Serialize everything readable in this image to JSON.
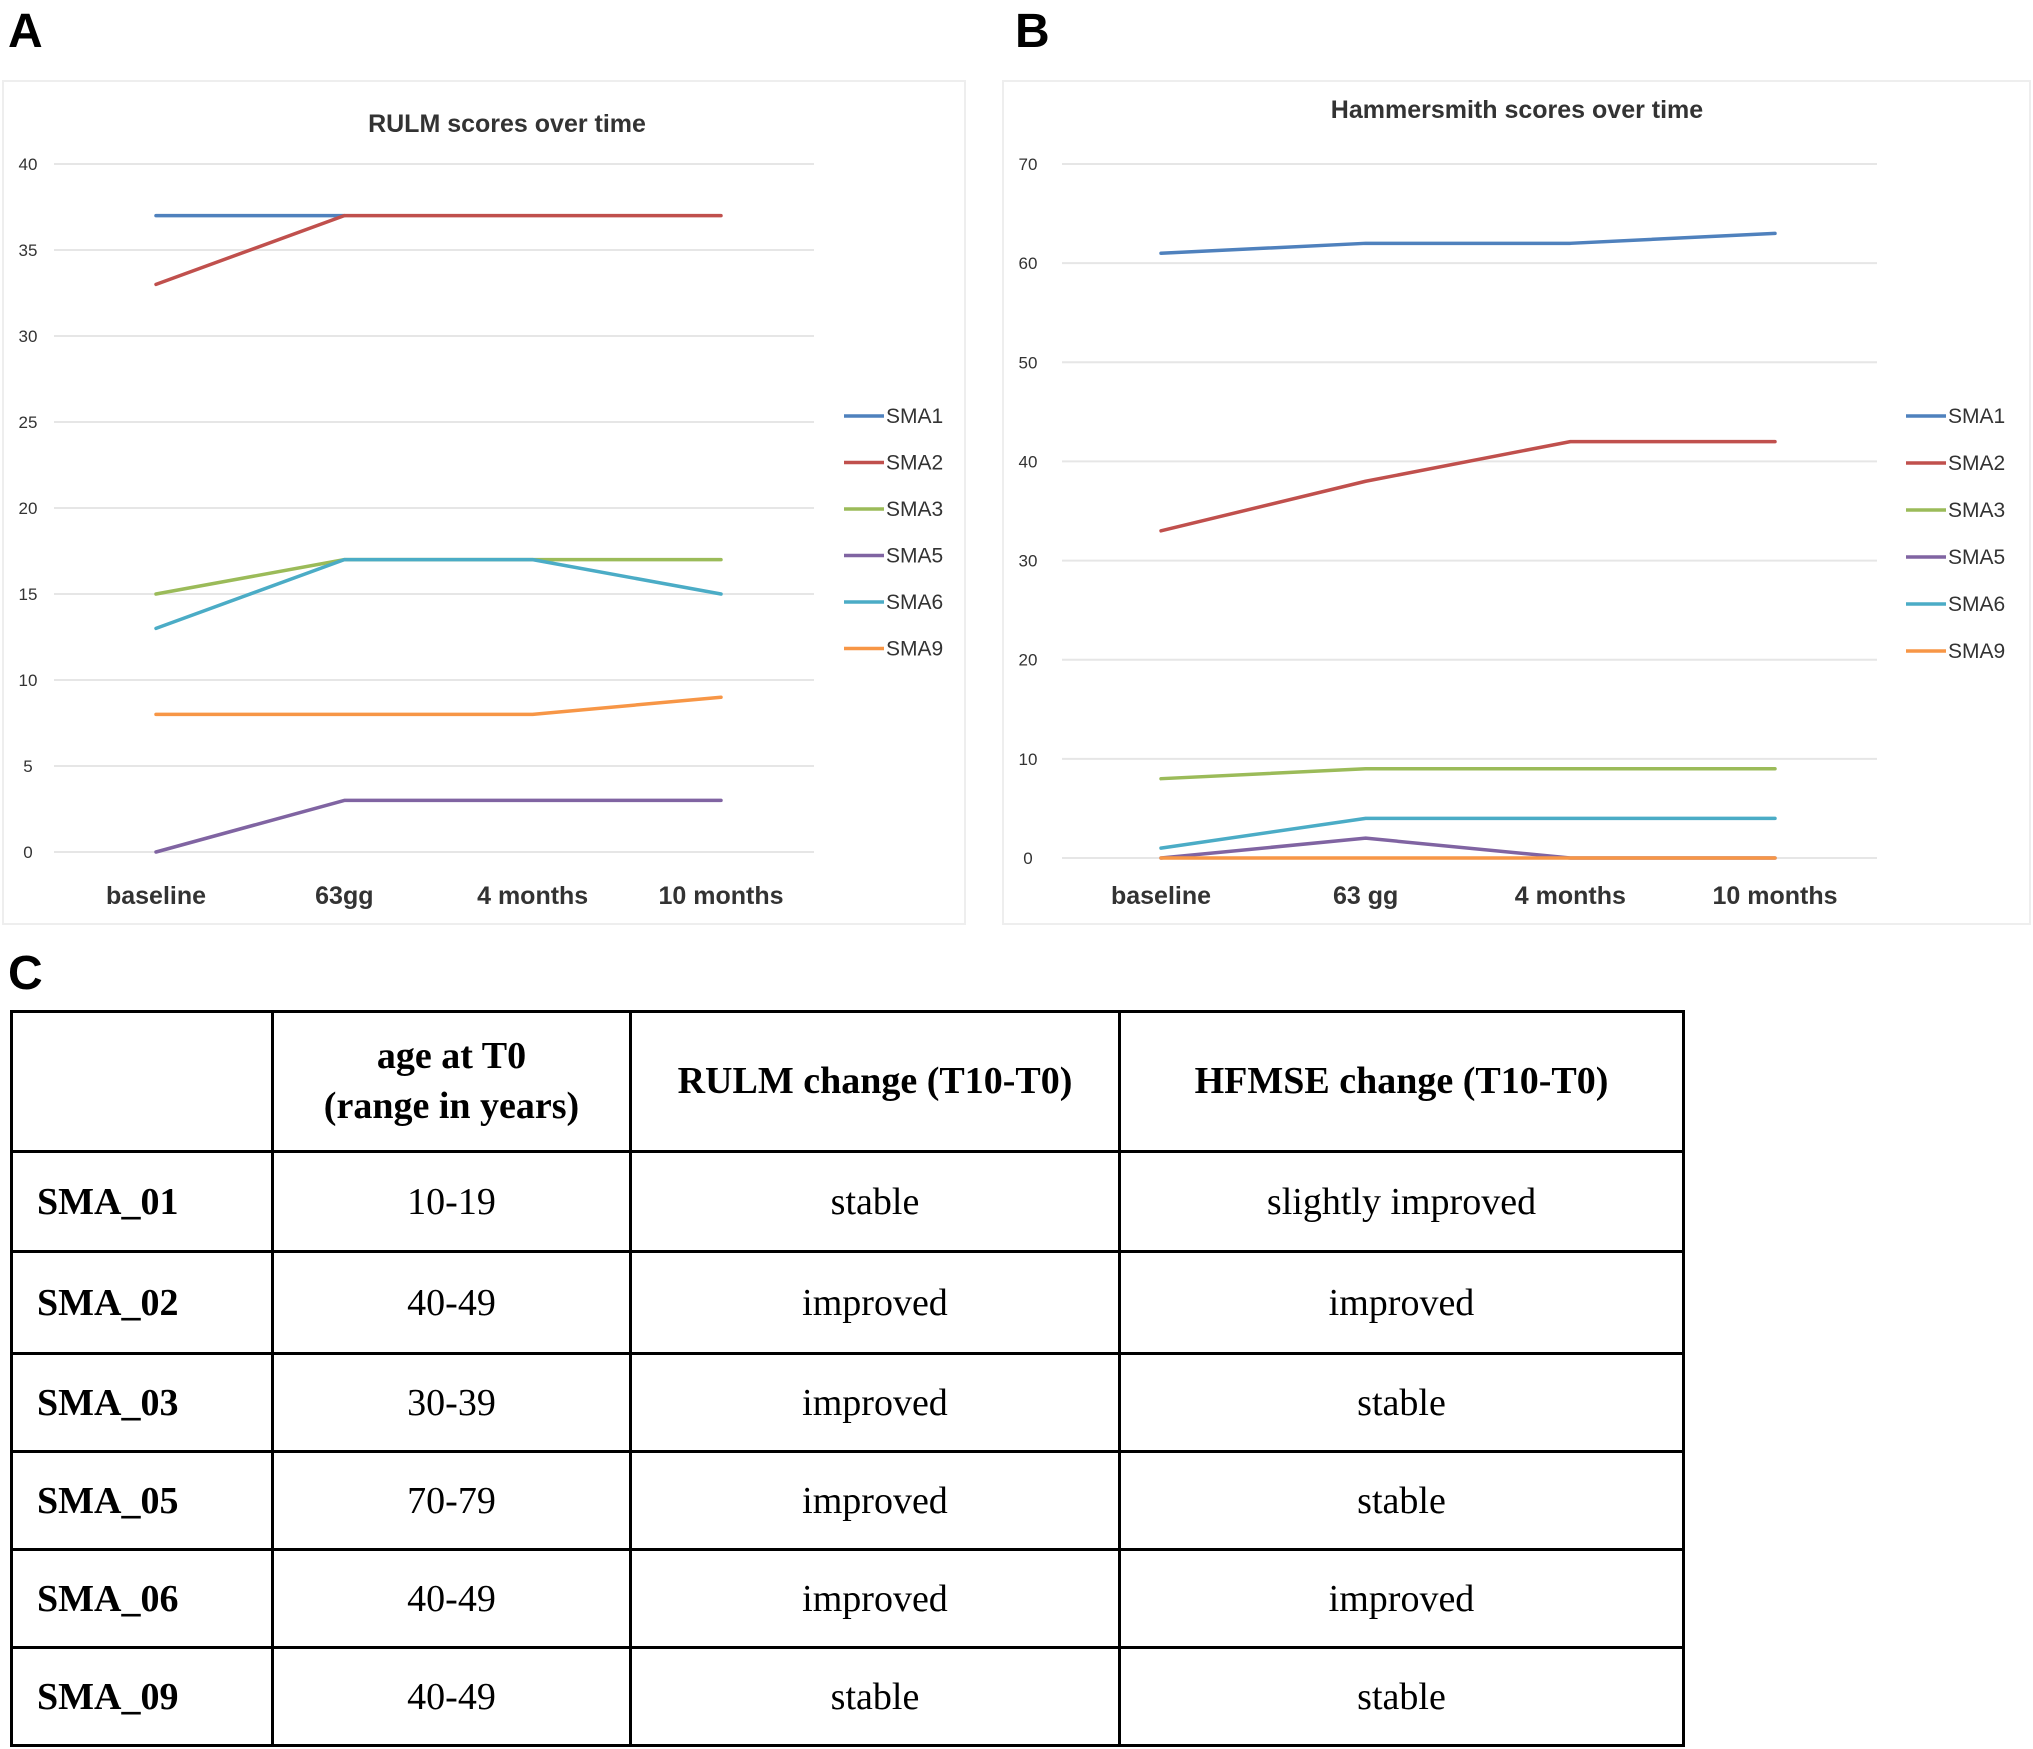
{
  "panels": {
    "a": "A",
    "b": "B",
    "c": "C"
  },
  "colors": {
    "SMA1": "#4f81bd",
    "SMA2": "#c0504d",
    "SMA3": "#9bbb59",
    "SMA5": "#8064a2",
    "SMA6": "#4bacc6",
    "SMA9": "#f79646",
    "grid": "#e6e6e6"
  },
  "chart_data": [
    {
      "type": "line",
      "title": "RULM scores over time",
      "categories": [
        "baseline",
        "63gg",
        "4 months",
        "10 months"
      ],
      "ylim": [
        0,
        40
      ],
      "yticks": [
        0,
        5,
        10,
        15,
        20,
        25,
        30,
        35,
        40
      ],
      "grid": true,
      "legend_position": "right",
      "series": [
        {
          "name": "SMA1",
          "values": [
            37,
            37,
            null,
            null
          ]
        },
        {
          "name": "SMA2",
          "values": [
            33,
            37,
            37,
            37
          ]
        },
        {
          "name": "SMA3",
          "values": [
            15,
            17,
            17,
            17
          ]
        },
        {
          "name": "SMA5",
          "values": [
            0,
            3,
            3,
            3
          ]
        },
        {
          "name": "SMA6",
          "values": [
            13,
            17,
            17,
            15
          ]
        },
        {
          "name": "SMA9",
          "values": [
            8,
            8,
            8,
            9
          ]
        }
      ]
    },
    {
      "type": "line",
      "title": "Hammersmith scores over time",
      "categories": [
        "baseline",
        "63 gg",
        "4 months",
        "10 months"
      ],
      "ylim": [
        0,
        70
      ],
      "yticks": [
        0,
        10,
        20,
        30,
        40,
        50,
        60,
        70
      ],
      "grid": true,
      "legend_position": "right",
      "series": [
        {
          "name": "SMA1",
          "values": [
            61,
            62,
            62,
            63
          ]
        },
        {
          "name": "SMA2",
          "values": [
            33,
            38,
            42,
            42
          ]
        },
        {
          "name": "SMA3",
          "values": [
            8,
            9,
            9,
            9
          ]
        },
        {
          "name": "SMA5",
          "values": [
            0,
            2,
            0,
            0
          ]
        },
        {
          "name": "SMA6",
          "values": [
            1,
            4,
            4,
            4
          ]
        },
        {
          "name": "SMA9",
          "values": [
            0,
            0,
            0,
            0
          ]
        }
      ]
    }
  ],
  "table": {
    "headers": [
      "",
      "age at T0\n(range in years)",
      "RULM change (T10-T0)",
      "HFMSE change (T10-T0)"
    ],
    "rows": [
      [
        "SMA_01",
        "10-19",
        "stable",
        "slightly improved"
      ],
      [
        "SMA_02",
        "40-49",
        "improved",
        "improved"
      ],
      [
        "SMA_03",
        "30-39",
        "improved",
        "stable"
      ],
      [
        "SMA_05",
        "70-79",
        "improved",
        "stable"
      ],
      [
        "SMA_06",
        "40-49",
        "improved",
        "improved"
      ],
      [
        "SMA_09",
        "40-49",
        "stable",
        "stable"
      ]
    ]
  }
}
